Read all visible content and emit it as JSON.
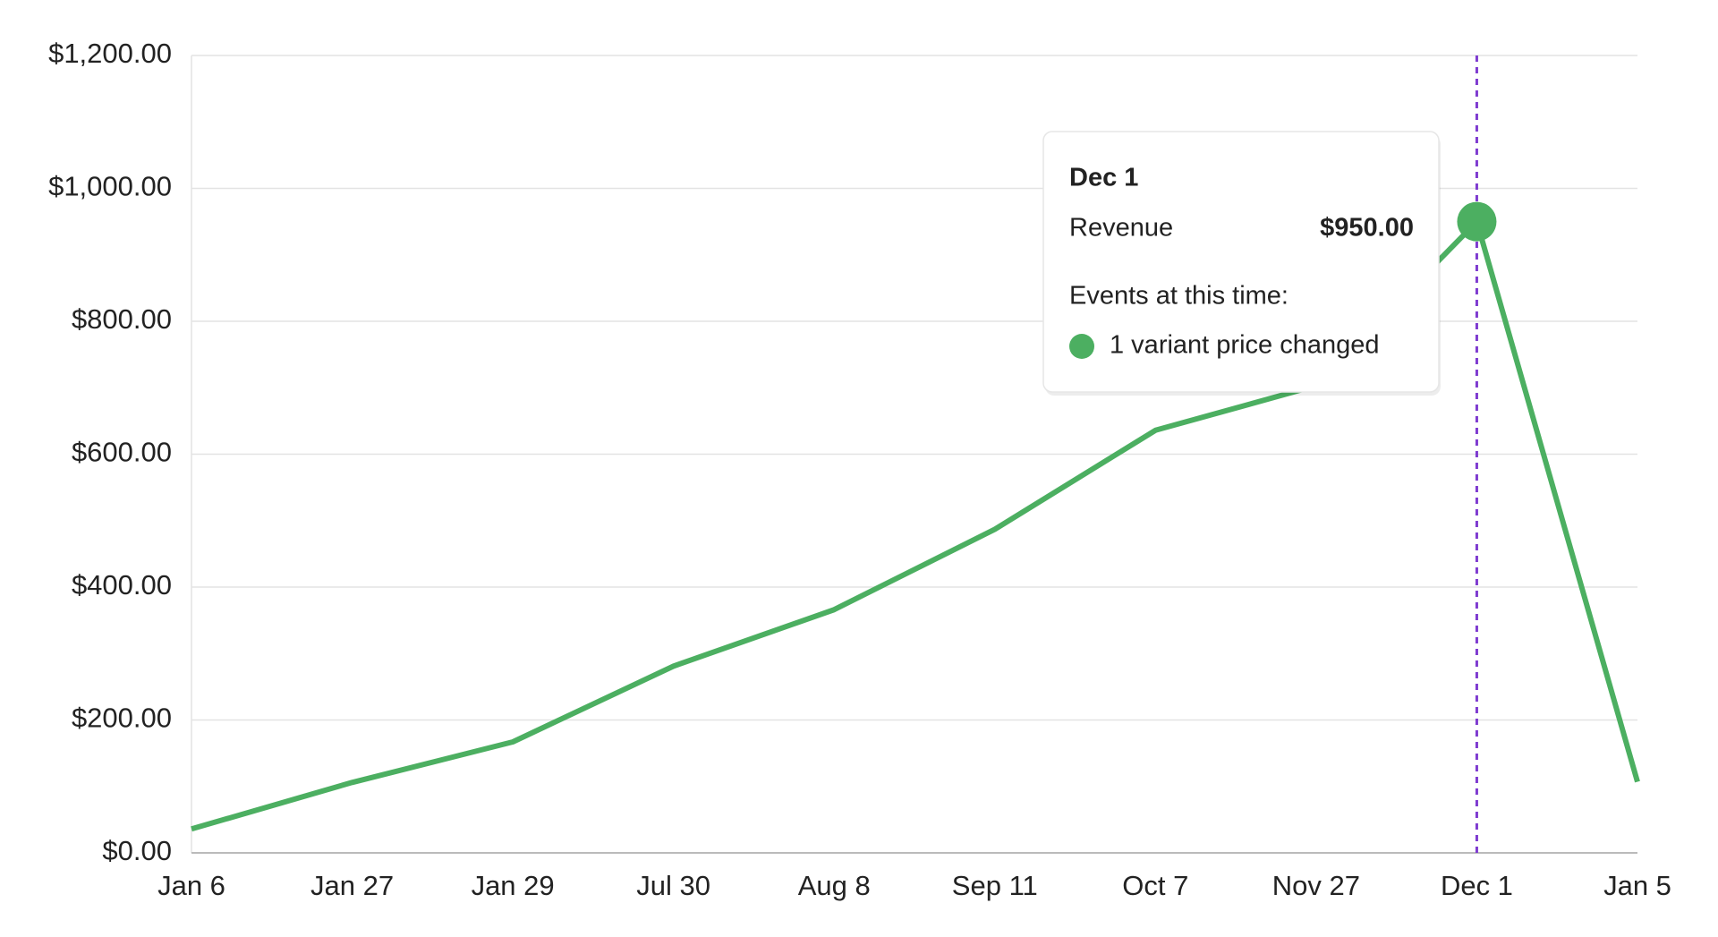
{
  "chart_data": {
    "type": "line",
    "categories": [
      "Jan 6",
      "Jan 27",
      "Jan 29",
      "Jul 30",
      "Aug 8",
      "Sep 11",
      "Oct 7",
      "Nov 27",
      "Dec 1",
      "Jan 5"
    ],
    "series": [
      {
        "name": "Revenue",
        "color": "#4caf61",
        "values": [
          36,
          106,
          167,
          281,
          366,
          487,
          636,
          703,
          950,
          107
        ]
      }
    ],
    "ylim": [
      0,
      1200
    ],
    "yticks": [
      {
        "value": 0,
        "label": "$0.00"
      },
      {
        "value": 200,
        "label": "$200.00"
      },
      {
        "value": 400,
        "label": "$400.00"
      },
      {
        "value": 600,
        "label": "$600.00"
      },
      {
        "value": 800,
        "label": "$800.00"
      },
      {
        "value": 1000,
        "label": "$1,000.00"
      },
      {
        "value": 1200,
        "label": "$1,200.00"
      }
    ],
    "grid": true,
    "marker_color": "#7e3bd0",
    "tooltip": {
      "category": "Dec 1",
      "value": 950,
      "value_label": "$950.00",
      "events_heading": "Events at this time:",
      "events": [
        "1 variant price changed"
      ]
    }
  }
}
